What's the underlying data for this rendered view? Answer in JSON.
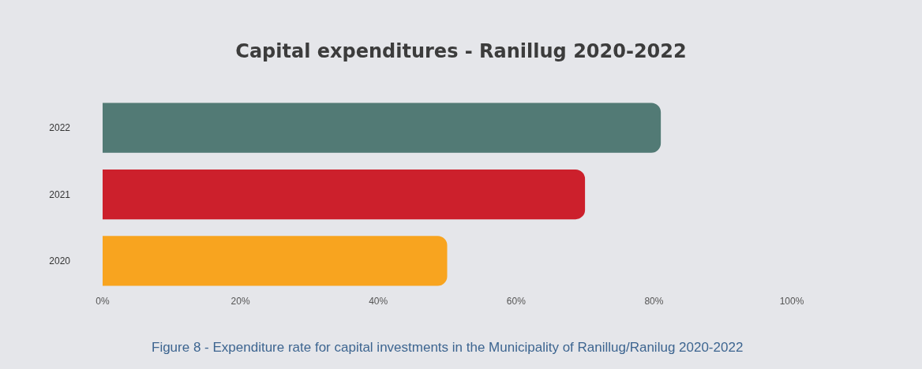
{
  "chart_data": {
    "type": "bar",
    "orientation": "horizontal",
    "title": "Capital expenditures - Ranillug 2020-2022",
    "categories": [
      "2022",
      "2021",
      "2020"
    ],
    "values": [
      81,
      70,
      50
    ],
    "colors": [
      "#527a75",
      "#cc202c",
      "#f8a41f"
    ],
    "xlim": [
      0,
      100
    ],
    "xticks": [
      {
        "value": 0,
        "label": "0%"
      },
      {
        "value": 20,
        "label": "20%"
      },
      {
        "value": 40,
        "label": "40%"
      },
      {
        "value": 60,
        "label": "60%"
      },
      {
        "value": 80,
        "label": "80%"
      },
      {
        "value": 100,
        "label": "100%"
      }
    ],
    "grid": false,
    "annotations": [
      "Figure 8 - Expenditure rate for capital investments in the Municipality of Ranillug/Ranilug 2020-2022"
    ]
  }
}
